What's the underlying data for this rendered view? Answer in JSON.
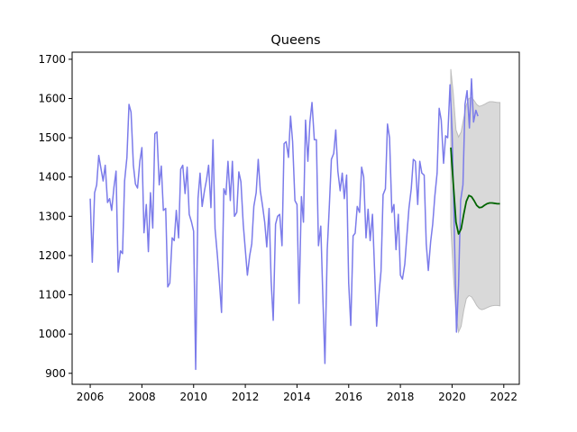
{
  "chart_data": {
    "type": "line",
    "title": "Queens",
    "xlabel": "",
    "ylabel": "",
    "xlim": [
      2005.3,
      2022.6
    ],
    "ylim": [
      872,
      1718
    ],
    "x_ticks": [
      2006,
      2008,
      2010,
      2012,
      2014,
      2016,
      2018,
      2020,
      2022
    ],
    "y_ticks": [
      900,
      1000,
      1100,
      1200,
      1300,
      1400,
      1500,
      1600,
      1700
    ],
    "grid": false,
    "colors": {
      "observed": "#7b7bea",
      "forecast": "#006400",
      "band": "#d9d9d9",
      "band_edge": "#bdbdbd"
    },
    "series": [
      {
        "role": "observed",
        "x": [
          2006.0,
          2006.08,
          2006.17,
          2006.25,
          2006.33,
          2006.42,
          2006.5,
          2006.58,
          2006.67,
          2006.75,
          2006.83,
          2006.92,
          2007.0,
          2007.08,
          2007.17,
          2007.25,
          2007.33,
          2007.42,
          2007.5,
          2007.58,
          2007.67,
          2007.75,
          2007.83,
          2007.92,
          2008.0,
          2008.08,
          2008.17,
          2008.25,
          2008.33,
          2008.42,
          2008.5,
          2008.58,
          2008.67,
          2008.75,
          2008.83,
          2008.92,
          2009.0,
          2009.08,
          2009.17,
          2009.25,
          2009.33,
          2009.42,
          2009.5,
          2009.58,
          2009.67,
          2009.75,
          2009.83,
          2009.92,
          2010.0,
          2010.08,
          2010.17,
          2010.25,
          2010.33,
          2010.42,
          2010.5,
          2010.58,
          2010.67,
          2010.75,
          2010.83,
          2010.92,
          2011.0,
          2011.08,
          2011.17,
          2011.25,
          2011.33,
          2011.42,
          2011.5,
          2011.58,
          2011.67,
          2011.75,
          2011.83,
          2011.92,
          2012.0,
          2012.08,
          2012.17,
          2012.25,
          2012.33,
          2012.42,
          2012.5,
          2012.58,
          2012.67,
          2012.75,
          2012.83,
          2012.92,
          2013.0,
          2013.08,
          2013.17,
          2013.25,
          2013.33,
          2013.42,
          2013.5,
          2013.58,
          2013.67,
          2013.75,
          2013.83,
          2013.92,
          2014.0,
          2014.08,
          2014.17,
          2014.25,
          2014.33,
          2014.42,
          2014.5,
          2014.58,
          2014.67,
          2014.75,
          2014.83,
          2014.92,
          2015.0,
          2015.08,
          2015.17,
          2015.25,
          2015.33,
          2015.42,
          2015.5,
          2015.58,
          2015.67,
          2015.75,
          2015.83,
          2015.92,
          2016.0,
          2016.08,
          2016.17,
          2016.25,
          2016.33,
          2016.42,
          2016.5,
          2016.58,
          2016.67,
          2016.75,
          2016.83,
          2016.92,
          2017.0,
          2017.08,
          2017.17,
          2017.25,
          2017.33,
          2017.42,
          2017.5,
          2017.58,
          2017.67,
          2017.75,
          2017.83,
          2017.92,
          2018.0,
          2018.08,
          2018.17,
          2018.25,
          2018.33,
          2018.42,
          2018.5,
          2018.58,
          2018.67,
          2018.75,
          2018.83,
          2018.92,
          2019.0,
          2019.08,
          2019.17,
          2019.25,
          2019.33,
          2019.42,
          2019.5,
          2019.58,
          2019.67,
          2019.75,
          2019.83,
          2019.92,
          2020.0,
          2020.08,
          2020.17,
          2020.25,
          2020.33,
          2020.42,
          2020.5,
          2020.58,
          2020.67,
          2020.75,
          2020.83,
          2020.92,
          2021.0
        ],
        "values": [
          1345,
          1183,
          1360,
          1380,
          1455,
          1420,
          1390,
          1430,
          1335,
          1345,
          1315,
          1375,
          1415,
          1158,
          1212,
          1205,
          1390,
          1450,
          1585,
          1565,
          1430,
          1382,
          1372,
          1440,
          1475,
          1258,
          1330,
          1210,
          1360,
          1270,
          1510,
          1515,
          1380,
          1428,
          1315,
          1320,
          1120,
          1130,
          1245,
          1238,
          1315,
          1245,
          1420,
          1430,
          1358,
          1425,
          1305,
          1285,
          1262,
          910,
          1345,
          1410,
          1325,
          1365,
          1393,
          1430,
          1322,
          1495,
          1268,
          1200,
          1130,
          1055,
          1370,
          1355,
          1440,
          1340,
          1440,
          1300,
          1310,
          1413,
          1388,
          1280,
          1215,
          1150,
          1200,
          1230,
          1325,
          1360,
          1445,
          1365,
          1325,
          1285,
          1222,
          1320,
          1135,
          1035,
          1280,
          1300,
          1305,
          1225,
          1485,
          1490,
          1450,
          1555,
          1490,
          1340,
          1330,
          1078,
          1350,
          1285,
          1545,
          1440,
          1540,
          1590,
          1495,
          1495,
          1225,
          1275,
          1095,
          925,
          1215,
          1325,
          1445,
          1460,
          1520,
          1415,
          1365,
          1410,
          1345,
          1405,
          1130,
          1022,
          1250,
          1257,
          1325,
          1310,
          1425,
          1400,
          1245,
          1318,
          1238,
          1305,
          1165,
          1020,
          1100,
          1160,
          1355,
          1370,
          1535,
          1500,
          1310,
          1330,
          1215,
          1305,
          1150,
          1140,
          1178,
          1250,
          1320,
          1370,
          1445,
          1440,
          1330,
          1440,
          1410,
          1405,
          1230,
          1162,
          1235,
          1280,
          1350,
          1410,
          1575,
          1545,
          1435,
          1505,
          1500,
          1635,
          1515,
          1280,
          1005,
          1125,
          1340,
          1380,
          1585,
          1620,
          1525,
          1650,
          1540,
          1570,
          1555
        ]
      },
      {
        "role": "forecast",
        "x": [
          2019.95,
          2020.05,
          2020.15,
          2020.25,
          2020.35,
          2020.45,
          2020.55,
          2020.65,
          2020.75,
          2020.85,
          2020.95,
          2021.05,
          2021.15,
          2021.25,
          2021.35,
          2021.45,
          2021.55,
          2021.65,
          2021.75,
          2021.85
        ],
        "values": [
          1475,
          1380,
          1285,
          1255,
          1268,
          1305,
          1338,
          1353,
          1350,
          1340,
          1328,
          1322,
          1323,
          1328,
          1332,
          1334,
          1334,
          1333,
          1332,
          1332
        ],
        "lower": [
          1275,
          1150,
          1050,
          1005,
          1020,
          1060,
          1090,
          1098,
          1095,
          1085,
          1073,
          1065,
          1062,
          1064,
          1067,
          1070,
          1072,
          1073,
          1073,
          1072
        ],
        "upper": [
          1675,
          1610,
          1520,
          1502,
          1515,
          1550,
          1583,
          1600,
          1603,
          1595,
          1585,
          1580,
          1582,
          1585,
          1589,
          1592,
          1592,
          1591,
          1590,
          1590
        ]
      }
    ]
  }
}
